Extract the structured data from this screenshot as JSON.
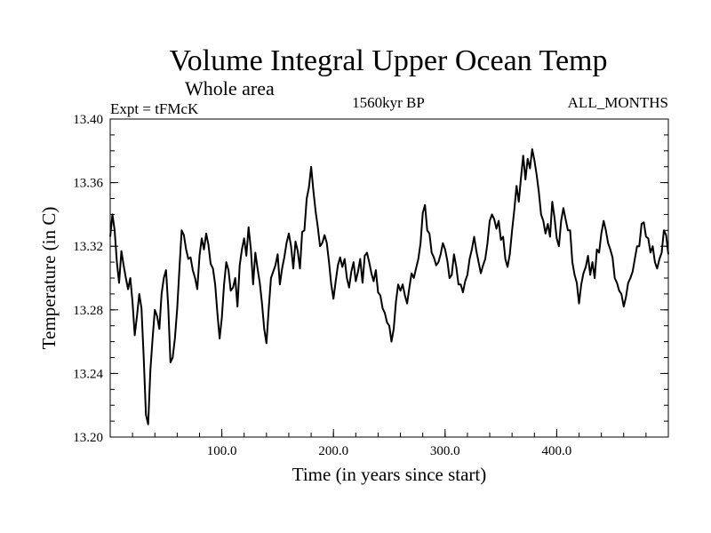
{
  "chart_data": {
    "type": "line",
    "title": "Volume Integral Upper Ocean Temp",
    "subtitle": "Whole area",
    "experiment_label": "Expt = tFMcK",
    "period_label": "1560kyr BP",
    "months_label": "ALL_MONTHS",
    "xlabel": "Time (in years since start)",
    "ylabel": "Temperature (in C)",
    "xlim": [
      0,
      500
    ],
    "ylim": [
      13.2,
      13.4
    ],
    "x_ticks": [
      100,
      200,
      300,
      400
    ],
    "x_tick_labels": [
      "100.0",
      "200.0",
      "300.0",
      "400.0"
    ],
    "y_ticks": [
      13.2,
      13.24,
      13.28,
      13.32,
      13.36,
      13.4
    ],
    "y_tick_labels": [
      "13.20",
      "13.24",
      "13.28",
      "13.32",
      "13.36",
      "13.40"
    ],
    "x_minor_step": 20,
    "y_minor_step": 0.01,
    "series": [
      {
        "name": "Volume Integral Upper Ocean Temp",
        "color": "#000000",
        "x": [
          0,
          2,
          4,
          6,
          8,
          10,
          12,
          14,
          16,
          18,
          20,
          22,
          24,
          26,
          28,
          30,
          32,
          34,
          36,
          38,
          40,
          42,
          44,
          46,
          48,
          50,
          52,
          54,
          56,
          58,
          60,
          62,
          64,
          66,
          68,
          70,
          72,
          74,
          76,
          78,
          80,
          82,
          84,
          86,
          88,
          90,
          92,
          94,
          96,
          98,
          100,
          102,
          104,
          106,
          108,
          110,
          112,
          114,
          116,
          118,
          120,
          122,
          124,
          126,
          128,
          130,
          132,
          134,
          136,
          138,
          140,
          142,
          144,
          146,
          148,
          150,
          152,
          154,
          156,
          158,
          160,
          162,
          164,
          166,
          168,
          170,
          172,
          174,
          176,
          178,
          180,
          182,
          184,
          186,
          188,
          190,
          192,
          194,
          196,
          198,
          200,
          202,
          204,
          206,
          208,
          210,
          212,
          214,
          216,
          218,
          220,
          222,
          224,
          226,
          228,
          230,
          232,
          234,
          236,
          238,
          240,
          242,
          244,
          246,
          248,
          250,
          252,
          254,
          256,
          258,
          260,
          262,
          264,
          266,
          268,
          270,
          272,
          274,
          276,
          278,
          280,
          282,
          284,
          286,
          288,
          290,
          292,
          294,
          296,
          298,
          300,
          302,
          304,
          306,
          308,
          310,
          312,
          314,
          316,
          318,
          320,
          322,
          324,
          326,
          328,
          330,
          332,
          334,
          336,
          338,
          340,
          342,
          344,
          346,
          348,
          350,
          352,
          354,
          356,
          358,
          360,
          362,
          364,
          366,
          368,
          370,
          372,
          374,
          376,
          378,
          380,
          382,
          384,
          386,
          388,
          390,
          392,
          394,
          396,
          398,
          400,
          402,
          404,
          406,
          408,
          410,
          412,
          414,
          416,
          418,
          420,
          422,
          424,
          426,
          428,
          430,
          432,
          434,
          436,
          438,
          440,
          442,
          444,
          446,
          448,
          450,
          452,
          454,
          456,
          458,
          460,
          462,
          464,
          466,
          468,
          470,
          472,
          474,
          476,
          478,
          480,
          482,
          484,
          486,
          488,
          490,
          492,
          494,
          496,
          498,
          500
        ],
        "y": [
          13.326,
          13.34,
          13.33,
          13.31,
          13.297,
          13.317,
          13.308,
          13.3,
          13.293,
          13.3,
          13.285,
          13.264,
          13.276,
          13.29,
          13.281,
          13.25,
          13.214,
          13.208,
          13.242,
          13.262,
          13.28,
          13.276,
          13.268,
          13.29,
          13.3,
          13.305,
          13.282,
          13.247,
          13.25,
          13.262,
          13.281,
          13.306,
          13.33,
          13.327,
          13.318,
          13.312,
          13.313,
          13.305,
          13.3,
          13.293,
          13.314,
          13.325,
          13.318,
          13.328,
          13.321,
          13.309,
          13.306,
          13.296,
          13.278,
          13.262,
          13.275,
          13.296,
          13.31,
          13.305,
          13.292,
          13.294,
          13.3,
          13.282,
          13.308,
          13.318,
          13.325,
          13.314,
          13.332,
          13.318,
          13.296,
          13.316,
          13.306,
          13.297,
          13.284,
          13.268,
          13.259,
          13.281,
          13.3,
          13.304,
          13.308,
          13.315,
          13.296,
          13.306,
          13.313,
          13.322,
          13.328,
          13.32,
          13.306,
          13.323,
          13.317,
          13.306,
          13.329,
          13.33,
          13.35,
          13.357,
          13.37,
          13.355,
          13.342,
          13.332,
          13.32,
          13.322,
          13.327,
          13.322,
          13.31,
          13.296,
          13.287,
          13.298,
          13.308,
          13.313,
          13.307,
          13.312,
          13.3,
          13.294,
          13.304,
          13.31,
          13.298,
          13.304,
          13.312,
          13.297,
          13.314,
          13.316,
          13.31,
          13.303,
          13.298,
          13.305,
          13.291,
          13.289,
          13.281,
          13.278,
          13.272,
          13.27,
          13.26,
          13.268,
          13.285,
          13.296,
          13.292,
          13.296,
          13.289,
          13.284,
          13.294,
          13.303,
          13.3,
          13.306,
          13.312,
          13.322,
          13.341,
          13.346,
          13.33,
          13.328,
          13.316,
          13.313,
          13.308,
          13.31,
          13.315,
          13.322,
          13.318,
          13.311,
          13.3,
          13.302,
          13.315,
          13.307,
          13.296,
          13.296,
          13.291,
          13.298,
          13.302,
          13.312,
          13.318,
          13.326,
          13.317,
          13.31,
          13.303,
          13.308,
          13.312,
          13.322,
          13.336,
          13.34,
          13.337,
          13.331,
          13.336,
          13.324,
          13.326,
          13.312,
          13.307,
          13.315,
          13.33,
          13.343,
          13.358,
          13.348,
          13.363,
          13.377,
          13.362,
          13.375,
          13.369,
          13.381,
          13.374,
          13.365,
          13.354,
          13.34,
          13.336,
          13.328,
          13.334,
          13.326,
          13.348,
          13.338,
          13.325,
          13.32,
          13.336,
          13.344,
          13.337,
          13.33,
          13.33,
          13.31,
          13.302,
          13.297,
          13.284,
          13.296,
          13.303,
          13.307,
          13.314,
          13.302,
          13.31,
          13.3,
          13.318,
          13.316,
          13.328,
          13.336,
          13.33,
          13.322,
          13.318,
          13.313,
          13.3,
          13.297,
          13.292,
          13.29,
          13.282,
          13.288,
          13.297,
          13.3,
          13.304,
          13.312,
          13.32,
          13.32,
          13.334,
          13.335,
          13.326,
          13.325,
          13.316,
          13.32,
          13.31,
          13.306,
          13.312,
          13.316,
          13.33,
          13.327,
          13.315
        ]
      }
    ]
  }
}
